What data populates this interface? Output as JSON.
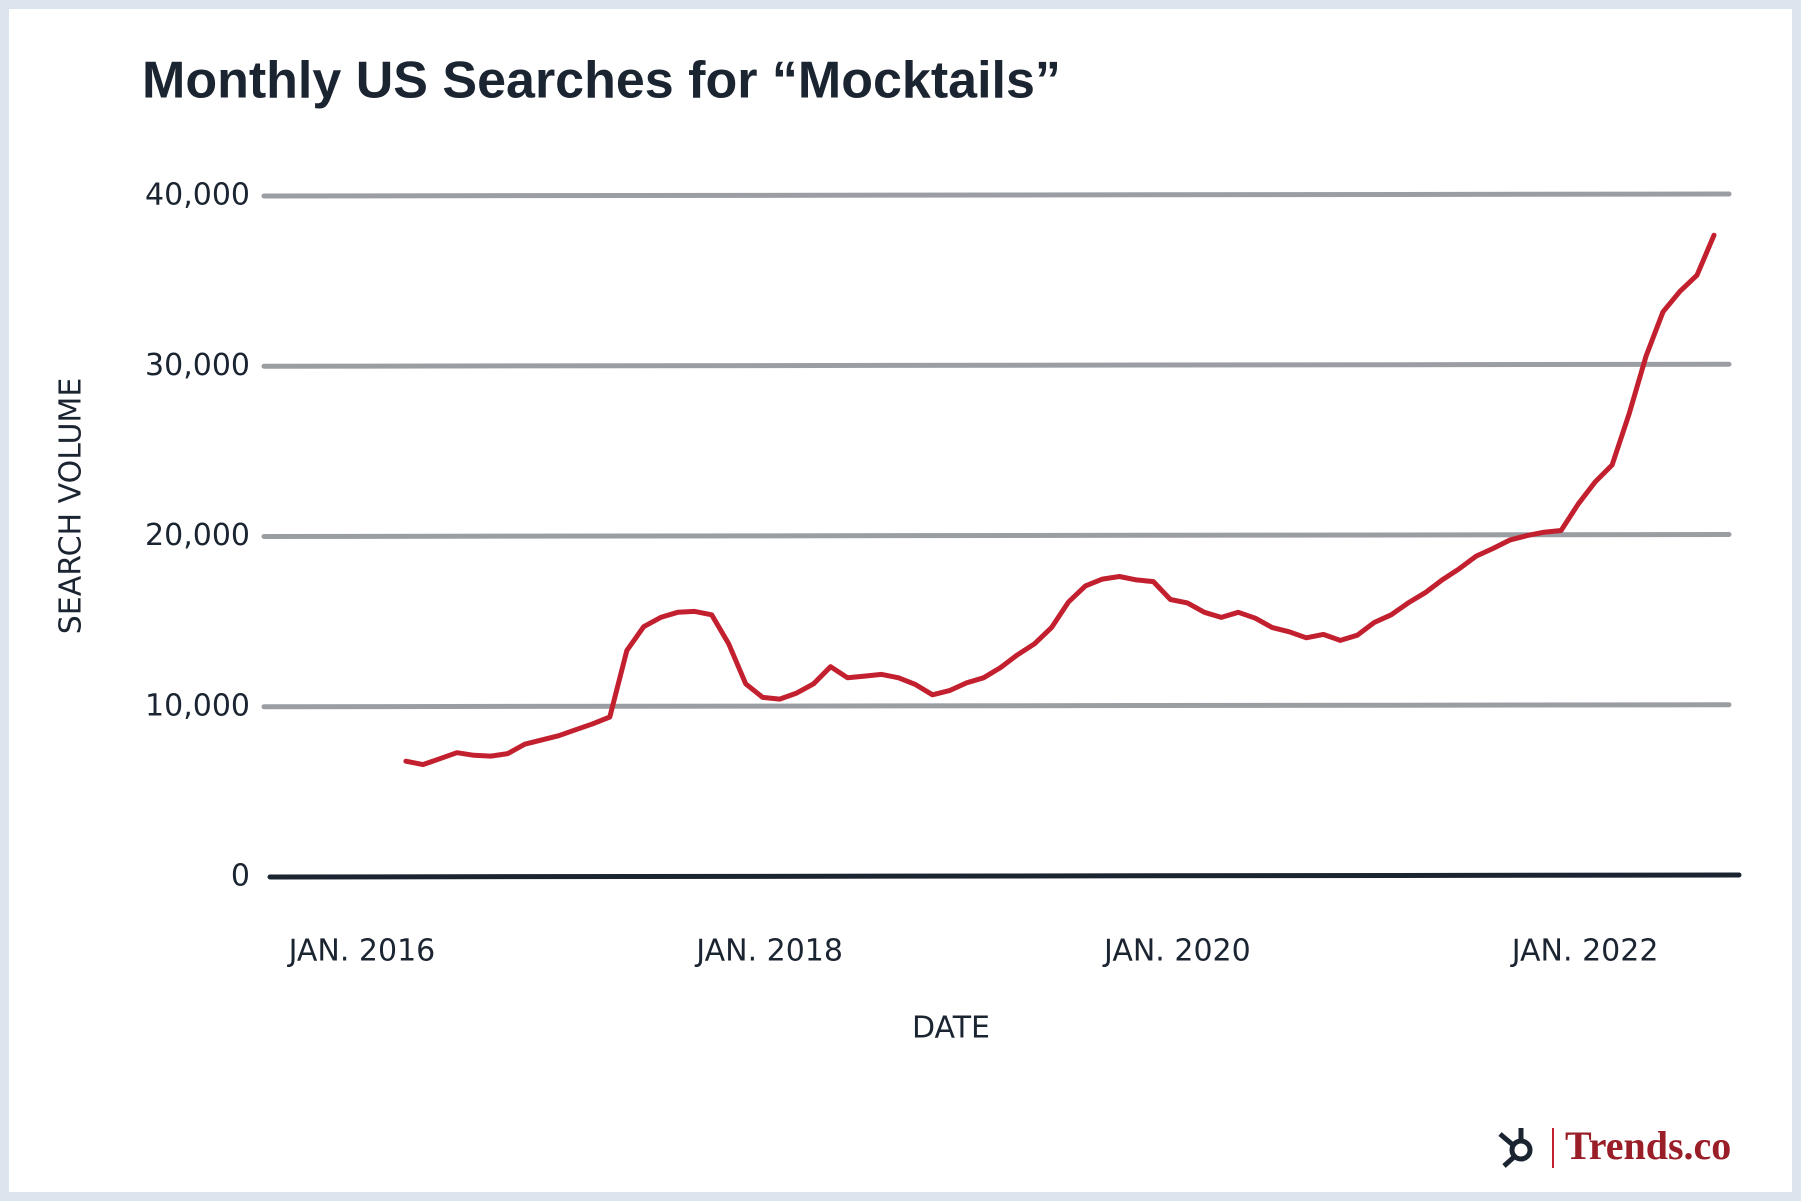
{
  "chart_data": {
    "type": "line",
    "title": "Monthly US Searches for “Mocktails”",
    "x_label": "DATE",
    "y_label": "SEARCH VOLUME",
    "branding": "Trends.co",
    "x": [
      "2016-03",
      "2016-04",
      "2016-05",
      "2016-06",
      "2016-07",
      "2016-08",
      "2016-09",
      "2016-10",
      "2016-11",
      "2016-12",
      "2017-01",
      "2017-02",
      "2017-03",
      "2017-04",
      "2017-05",
      "2017-06",
      "2017-07",
      "2017-08",
      "2017-09",
      "2017-10",
      "2017-11",
      "2017-12",
      "2018-01",
      "2018-02",
      "2018-03",
      "2018-04",
      "2018-05",
      "2018-06",
      "2018-07",
      "2018-08",
      "2018-09",
      "2018-10",
      "2018-11",
      "2018-12",
      "2019-01",
      "2019-02",
      "2019-03",
      "2019-04",
      "2019-05",
      "2019-06",
      "2019-07",
      "2019-08",
      "2019-09",
      "2019-10",
      "2019-11",
      "2019-12",
      "2020-01",
      "2020-02",
      "2020-03",
      "2020-04",
      "2020-05",
      "2020-06",
      "2020-07",
      "2020-08",
      "2020-09",
      "2020-10",
      "2020-11",
      "2020-12",
      "2021-01",
      "2021-02",
      "2021-03",
      "2021-04",
      "2021-05",
      "2021-06",
      "2021-07",
      "2021-08",
      "2021-09",
      "2021-10",
      "2021-11",
      "2021-12",
      "2022-01",
      "2022-02",
      "2022-03",
      "2022-04",
      "2022-05",
      "2022-06",
      "2022-07",
      "2022-08"
    ],
    "values": [
      6800,
      6600,
      6950,
      7300,
      7150,
      7100,
      7250,
      7800,
      8050,
      8300,
      8650,
      9000,
      9400,
      13300,
      14700,
      15250,
      15550,
      15600,
      15400,
      13700,
      11350,
      10550,
      10450,
      10800,
      11350,
      12350,
      11700,
      11800,
      11900,
      11700,
      11300,
      10700,
      10950,
      11400,
      11700,
      12300,
      13050,
      13700,
      14650,
      16150,
      17100,
      17500,
      17650,
      17450,
      17350,
      16300,
      16100,
      15550,
      15250,
      15550,
      15200,
      14650,
      14400,
      14050,
      14250,
      13900,
      14200,
      14950,
      15400,
      16100,
      16700,
      17450,
      18100,
      18850,
      19300,
      19800,
      20050,
      20250,
      20350,
      21900,
      23200,
      24200,
      27200,
      30600,
      33200,
      34400,
      35350,
      37700
    ],
    "color": "#c3202f",
    "xlim": [
      "2015-07",
      "2022-09"
    ],
    "xticks": [
      {
        "value": "2016-01",
        "label": "JAN. 2016"
      },
      {
        "value": "2018-01",
        "label": "JAN. 2018"
      },
      {
        "value": "2020-01",
        "label": "JAN. 2020"
      },
      {
        "value": "2022-01",
        "label": "JAN. 2022"
      }
    ],
    "ylim": [
      0,
      40000
    ],
    "yticks": [
      0,
      {
        "value": 10000,
        "label": "10,000"
      },
      {
        "value": 20000,
        "label": "20,000"
      },
      {
        "value": 30000,
        "label": "30,000"
      },
      {
        "value": 40000,
        "label": "40,000"
      }
    ],
    "grid": true
  }
}
